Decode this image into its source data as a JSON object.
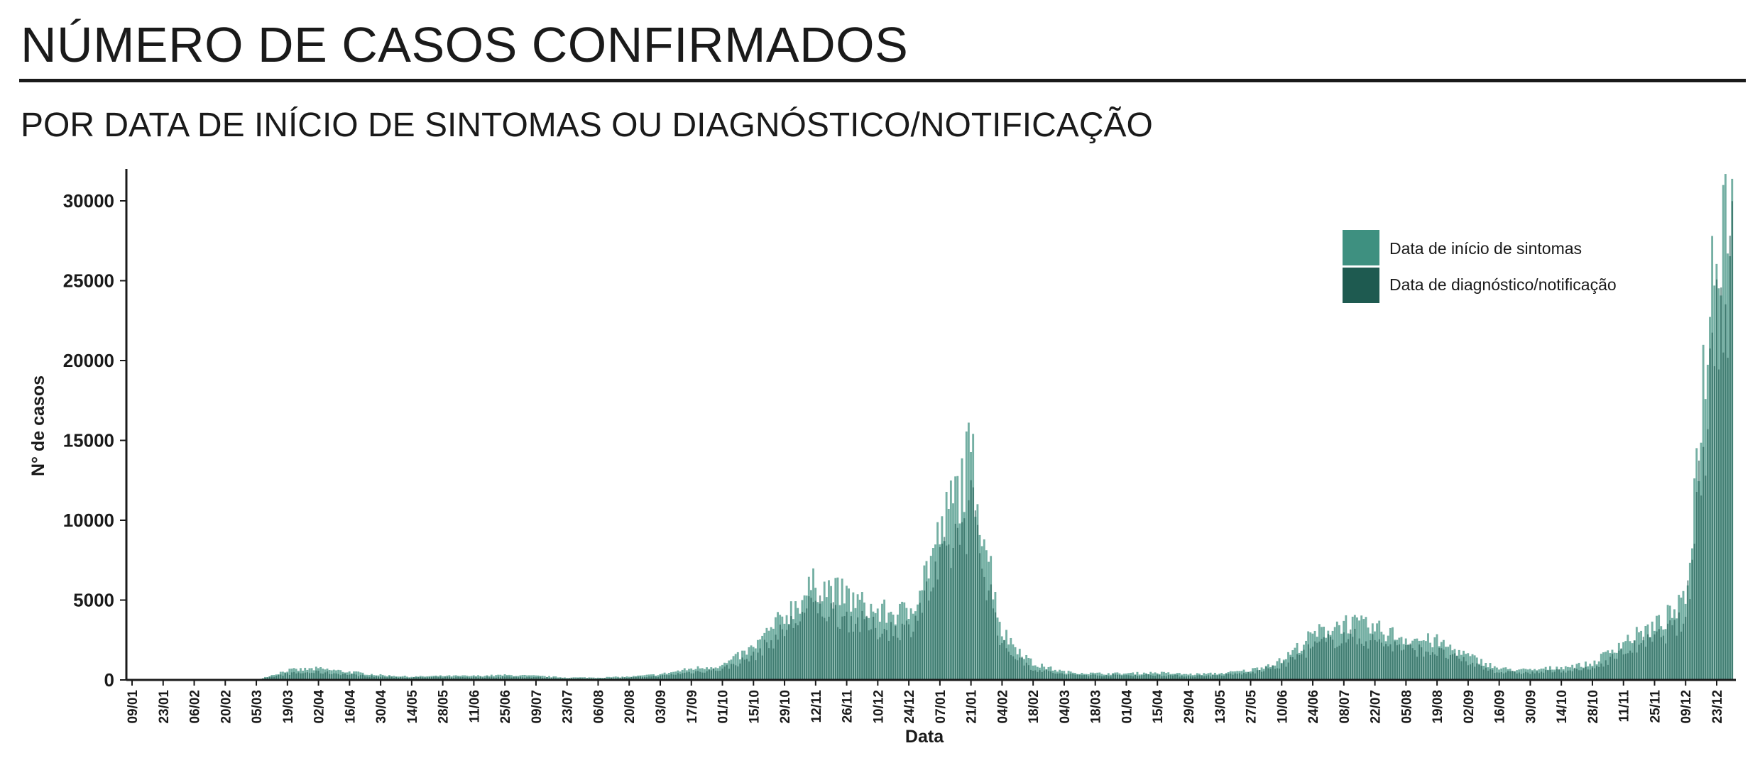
{
  "header": {
    "title": "NÚMERO DE CASOS CONFIRMADOS",
    "subtitle": "POR DATA DE INÍCIO DE SINTOMAS OU DIAGNÓSTICO/NOTIFICAÇÃO"
  },
  "colors": {
    "sintomas": "#3e9080",
    "diagnostico": "#1e5a50",
    "axis": "#1a1a1a"
  },
  "chart_data": {
    "type": "bar",
    "xlabel": "Data",
    "ylabel": "N° de casos",
    "ylim": [
      0,
      32000
    ],
    "yticks": [
      0,
      5000,
      10000,
      15000,
      20000,
      25000,
      30000
    ],
    "x_tick_labels": [
      "09/01",
      "23/01",
      "06/02",
      "20/02",
      "05/03",
      "19/03",
      "02/04",
      "16/04",
      "30/04",
      "14/05",
      "28/05",
      "11/06",
      "25/06",
      "09/07",
      "23/07",
      "06/08",
      "20/08",
      "03/09",
      "17/09",
      "01/10",
      "15/10",
      "29/10",
      "12/11",
      "26/11",
      "10/12",
      "24/12",
      "07/01",
      "21/01",
      "04/02",
      "18/02",
      "04/03",
      "18/03",
      "01/04",
      "15/04",
      "29/04",
      "13/05",
      "27/05",
      "10/06",
      "24/06",
      "08/07",
      "22/07",
      "05/08",
      "19/08",
      "02/09",
      "16/09",
      "30/09",
      "14/10",
      "28/10",
      "11/11",
      "25/11",
      "09/12",
      "23/12"
    ],
    "legend_position": "top-right",
    "series": [
      {
        "name": "Data de início de sintomas",
        "values_at_ticks": [
          0,
          0,
          0,
          0,
          0,
          600,
          700,
          500,
          300,
          200,
          250,
          250,
          300,
          250,
          150,
          150,
          200,
          350,
          700,
          900,
          2000,
          4000,
          6000,
          5200,
          4200,
          4200,
          9000,
          14000,
          3000,
          1000,
          500,
          400,
          400,
          450,
          350,
          400,
          600,
          1200,
          2800,
          3600,
          3200,
          2600,
          2400,
          1500,
          700,
          600,
          800,
          1000,
          2400,
          3300,
          4800,
          29000
        ]
      },
      {
        "name": "Data de diagnóstico/notificação",
        "values_at_ticks": [
          0,
          0,
          0,
          0,
          0,
          400,
          500,
          350,
          200,
          150,
          180,
          180,
          200,
          180,
          100,
          100,
          150,
          250,
          500,
          700,
          1500,
          3200,
          4800,
          4000,
          3200,
          3300,
          7000,
          11000,
          2200,
          700,
          350,
          300,
          300,
          320,
          250,
          300,
          450,
          900,
          2100,
          2800,
          2500,
          2000,
          1800,
          1100,
          500,
          450,
          600,
          700,
          1800,
          2600,
          3800,
          24000
        ]
      }
    ]
  }
}
